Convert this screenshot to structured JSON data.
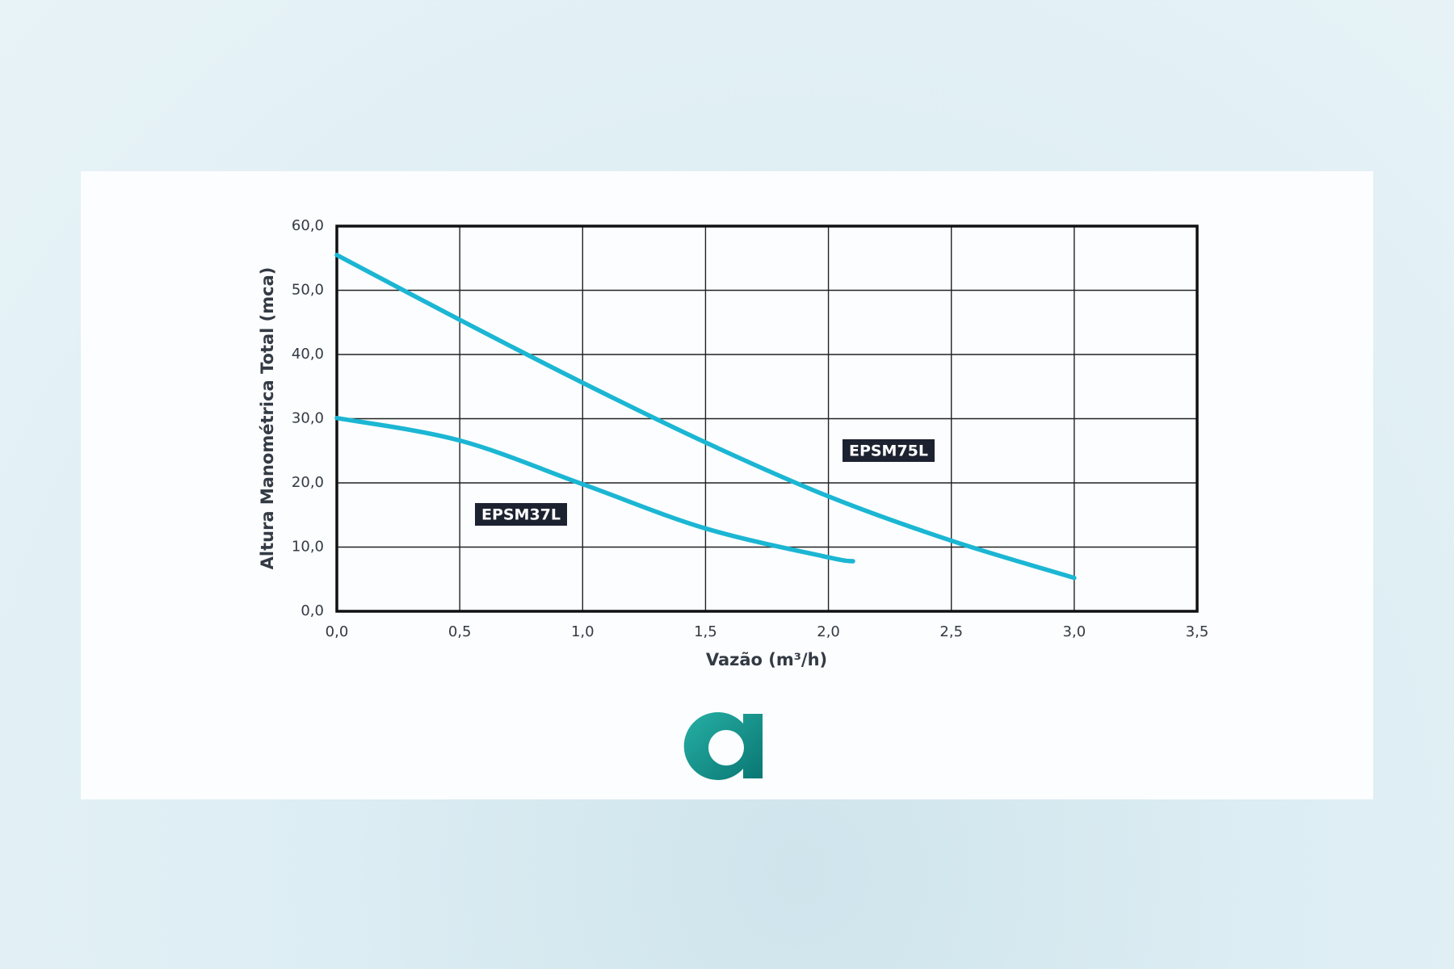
{
  "chart_data": {
    "type": "line",
    "xlabel": "Vazão (m³/h)",
    "ylabel": "Altura Manométrica Total (mca)",
    "series": [
      {
        "name": "EPSM75L",
        "color": "#1bb6d3",
        "x": [
          0,
          0.5,
          1.0,
          1.5,
          2.0,
          2.5,
          3.0
        ],
        "values": [
          55.5,
          45.4,
          35.6,
          26.3,
          17.9,
          11.0,
          5.2
        ]
      },
      {
        "name": "EPSM37L",
        "color": "#1bb6d3",
        "x": [
          0,
          0.5,
          1.0,
          1.5,
          2.0,
          2.1
        ],
        "values": [
          30.1,
          26.6,
          19.8,
          12.9,
          8.4,
          7.8
        ]
      }
    ],
    "xlim": [
      0,
      3.5
    ],
    "ylim": [
      0,
      60
    ],
    "xticks": [
      {
        "value": 0,
        "label": "0,0"
      },
      {
        "value": 0.5,
        "label": "0,5"
      },
      {
        "value": 1.0,
        "label": "1,0"
      },
      {
        "value": 1.5,
        "label": "1,5"
      },
      {
        "value": 2.0,
        "label": "2,0"
      },
      {
        "value": 2.5,
        "label": "2,5"
      },
      {
        "value": 3.0,
        "label": "3,0"
      },
      {
        "value": 3.5,
        "label": "3,5"
      }
    ],
    "yticks": [
      {
        "value": 0,
        "label": "0,0"
      },
      {
        "value": 10,
        "label": "10,0"
      },
      {
        "value": 20,
        "label": "20,0"
      },
      {
        "value": 30,
        "label": "30,0"
      },
      {
        "value": 40,
        "label": "40,0"
      },
      {
        "value": 50,
        "label": "50,0"
      },
      {
        "value": 60,
        "label": "60,0"
      }
    ],
    "grid": true
  }
}
